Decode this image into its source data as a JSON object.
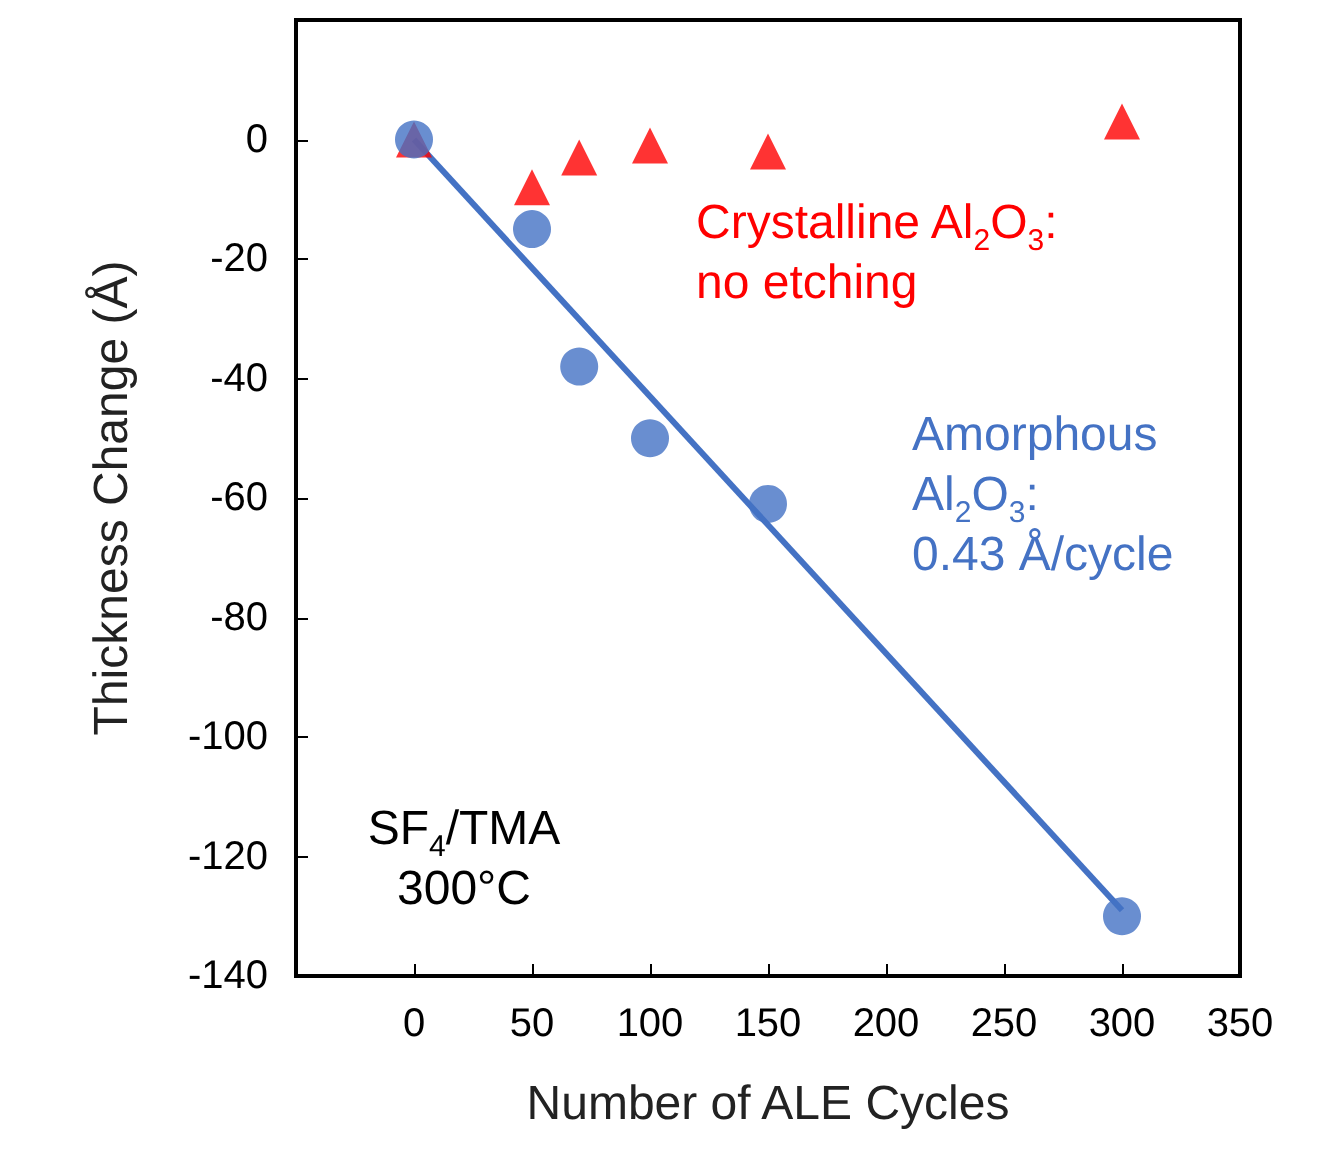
{
  "chart_data": {
    "type": "scatter",
    "xlabel": "Number of ALE Cycles",
    "ylabel": "Thickness Change (Å)",
    "xlim": [
      -50,
      350
    ],
    "xticks": [
      0,
      50,
      100,
      150,
      200,
      250,
      300,
      350
    ],
    "ylim": [
      -140,
      20
    ],
    "yticks": [
      -140,
      -120,
      -100,
      -80,
      -60,
      -40,
      -20,
      0
    ],
    "grid": false,
    "series": [
      {
        "marker": "triangle",
        "color": "#ff0000",
        "x": [
          0,
          50,
          70,
          100,
          150,
          300
        ],
        "values": [
          0,
          -8,
          -3,
          -1,
          -2,
          3
        ]
      },
      {
        "marker": "circle",
        "color": "#4472c4",
        "x": [
          0,
          50,
          70,
          100,
          150,
          300
        ],
        "values": [
          0,
          -15,
          -38,
          -50,
          -61,
          -130
        ]
      },
      {
        "type": "line",
        "marker": "none",
        "color": "#4472c4",
        "x": [
          0,
          300
        ],
        "values": [
          0,
          -129
        ]
      }
    ],
    "annotations": [
      "Crystalline Al$_{2}$O$_{3}$:\nno etching",
      "Amorphous\nAl$_{2}$O$_{3}$:\n0.43 Å/cycle",
      "SF$_{4}$/TMA\n300°C"
    ]
  }
}
